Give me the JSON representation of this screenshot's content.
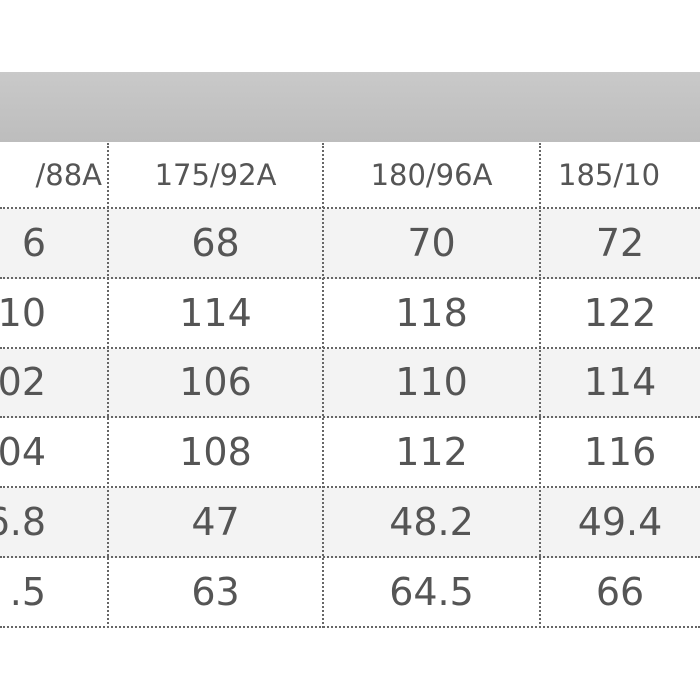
{
  "table": {
    "header": [
      "/88A",
      "175/92A",
      "180/96A",
      "185/10"
    ],
    "rows": [
      [
        "6",
        "68",
        "70",
        "72"
      ],
      [
        "10",
        "114",
        "118",
        "122"
      ],
      [
        "02",
        "106",
        "110",
        "114"
      ],
      [
        "04",
        "108",
        "112",
        "116"
      ],
      [
        "6.8",
        "47",
        "48.2",
        "49.4"
      ],
      [
        ".5",
        "63",
        "64.5",
        "66"
      ]
    ]
  }
}
